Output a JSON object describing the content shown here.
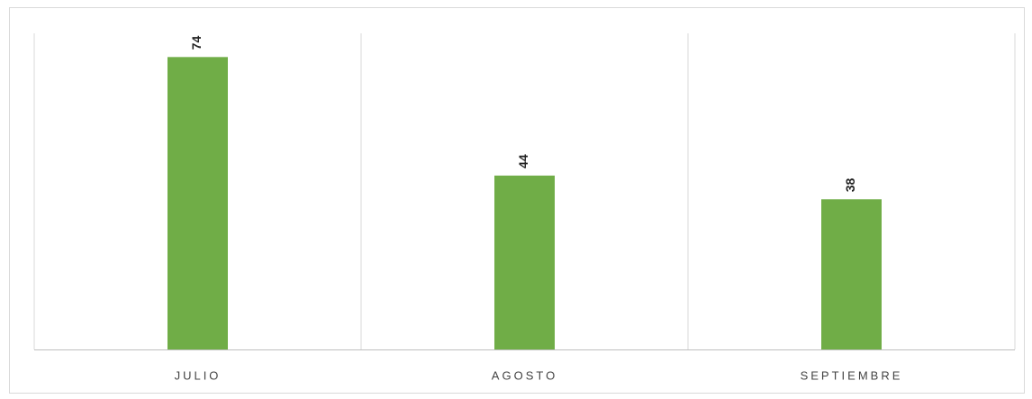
{
  "chart_data": {
    "type": "bar",
    "categories": [
      "JULIO",
      "AGOSTO",
      "SEPTIEMBRE"
    ],
    "values": [
      74,
      44,
      38
    ],
    "color": "#70ad47",
    "ylim": [
      0,
      80
    ]
  }
}
